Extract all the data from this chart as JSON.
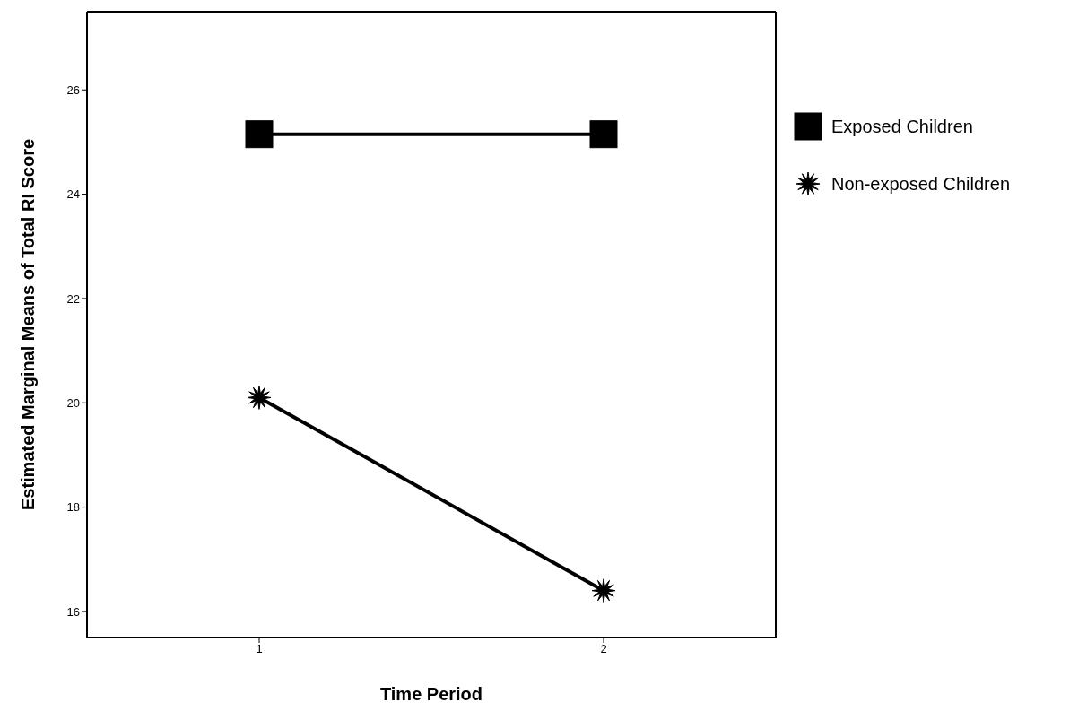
{
  "chart_data": {
    "type": "line",
    "xlabel": "Time Period",
    "ylabel": "Estimated Marginal Means of Total RI Score",
    "categories": [
      "1",
      "2"
    ],
    "series": [
      {
        "name": "Exposed Children",
        "color": "#000000",
        "values": [
          25.15,
          25.15
        ],
        "marker": "square"
      },
      {
        "name": "Non-exposed Children",
        "color": "#000000",
        "values": [
          20.1,
          16.4
        ],
        "marker": "star"
      }
    ],
    "ylim": [
      15.5,
      27.5
    ],
    "yticks": [
      16,
      18,
      20,
      22,
      24,
      26
    ],
    "grid": false,
    "legend": "right",
    "line_style": "solid"
  }
}
